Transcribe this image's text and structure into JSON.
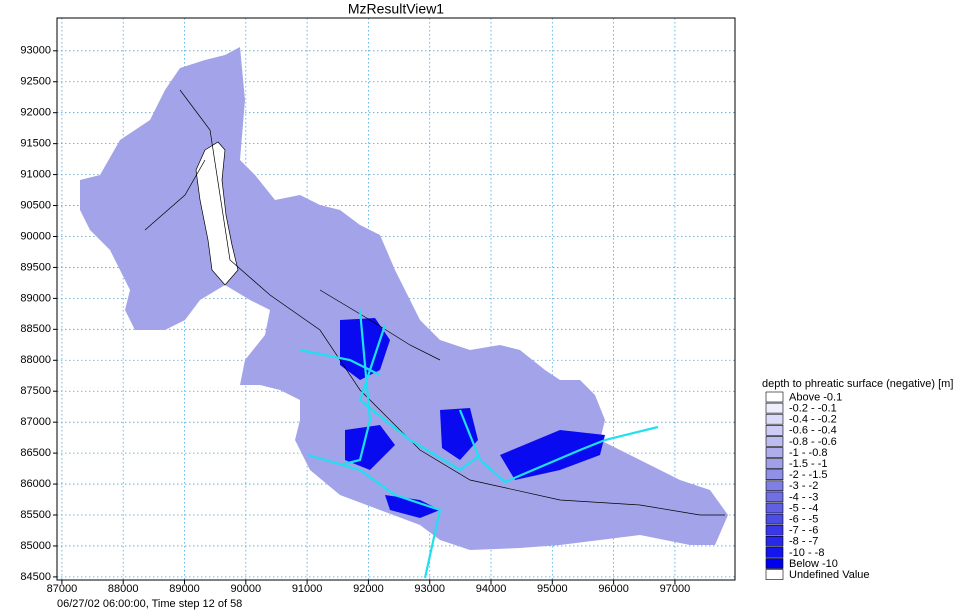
{
  "chart_data": {
    "type": "map",
    "title": "MzResultView1",
    "xlim": [
      86920,
      97980
    ],
    "ylim": [
      84450,
      93530
    ],
    "xticks": [
      87000,
      88000,
      89000,
      90000,
      91000,
      92000,
      93000,
      94000,
      95000,
      96000,
      97000
    ],
    "yticks": [
      84500,
      85000,
      85500,
      86000,
      86500,
      87000,
      87500,
      88000,
      88500,
      89000,
      89500,
      90000,
      90500,
      91000,
      91500,
      92000,
      92500,
      93000
    ],
    "grid": true,
    "legend": {
      "title": "depth to phreatic surface (negative) [m]",
      "items": [
        {
          "label": "Above -0.1",
          "color": "#ffffff"
        },
        {
          "label": "-0.2 - -0.1",
          "color": "#eeeefc"
        },
        {
          "label": "-0.4 - -0.2",
          "color": "#dcdcf8"
        },
        {
          "label": "-0.6 - -0.4",
          "color": "#ccccf4"
        },
        {
          "label": "-0.8 - -0.6",
          "color": "#bcbcf0"
        },
        {
          "label": "-1 - -0.8",
          "color": "#aeaeec"
        },
        {
          "label": "-1.5 - -1",
          "color": "#a0a0e8"
        },
        {
          "label": "-2 - -1.5",
          "color": "#9090e6"
        },
        {
          "label": "-3 - -2",
          "color": "#8080e4"
        },
        {
          "label": "-4 - -3",
          "color": "#7070e2"
        },
        {
          "label": "-5 - -4",
          "color": "#6060e4"
        },
        {
          "label": "-6 - -5",
          "color": "#4c4ce6"
        },
        {
          "label": "-7 - -6",
          "color": "#3838e8"
        },
        {
          "label": "-8 - -7",
          "color": "#2828ea"
        },
        {
          "label": "-10 - -8",
          "color": "#1414ee"
        },
        {
          "label": "Below -10",
          "color": "#0000f0"
        },
        {
          "label": "Undefined Value",
          "color": "#ffffff"
        }
      ]
    },
    "footer": "06/27/02 06:00:00, Time step 12 of 58"
  }
}
